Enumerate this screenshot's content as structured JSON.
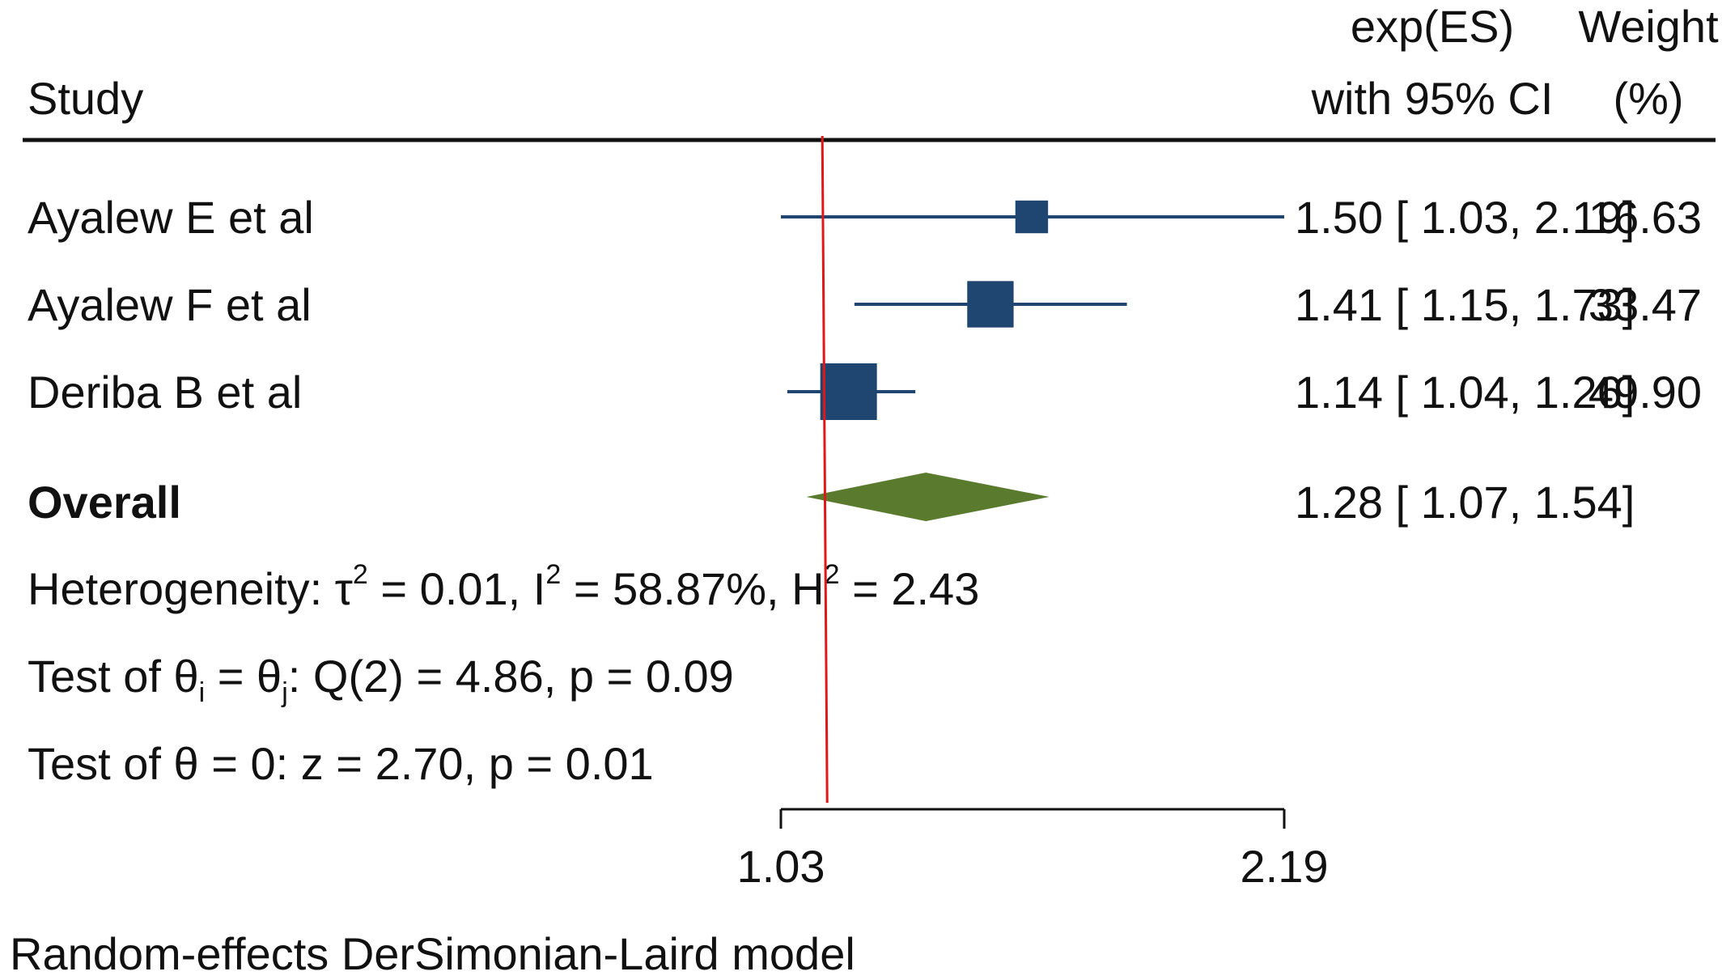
{
  "header": {
    "study": "Study",
    "es_line1": "exp(ES)",
    "es_line2": "with 95% CI",
    "weight_line1": "Weight",
    "weight_line2": "(%)"
  },
  "footer": "Random-effects DerSimonian-Laird model",
  "colors": {
    "study_marker": "#1f4670",
    "overall_diamond": "#5a7a2e",
    "reference_line": "#e01818"
  },
  "chart_data": {
    "type": "forest",
    "x_scale": "log",
    "xlim": [
      1.03,
      2.19
    ],
    "x_ticks": [
      1.03,
      2.19
    ],
    "x_tick_labels": [
      "1.03",
      "2.19"
    ],
    "reference_value": 1.1,
    "studies": [
      {
        "name": "Ayalew E et al",
        "es": 1.5,
        "lo": 1.03,
        "hi": 2.19,
        "weight": 16.63,
        "es_text": "1.50",
        "lo_text": "1.03",
        "hi_text": "2.19",
        "weight_text": "16.63"
      },
      {
        "name": "Ayalew F et al",
        "es": 1.41,
        "lo": 1.15,
        "hi": 1.73,
        "weight": 33.47,
        "es_text": "1.41",
        "lo_text": "1.15",
        "hi_text": "1.73",
        "weight_text": "33.47"
      },
      {
        "name": "Deriba B et al",
        "es": 1.14,
        "lo": 1.04,
        "hi": 1.26,
        "weight": 49.9,
        "es_text": "1.14",
        "lo_text": "1.04",
        "hi_text": "1.26",
        "weight_text": "49.90"
      }
    ],
    "overall": {
      "name": "Overall",
      "es": 1.28,
      "lo": 1.07,
      "hi": 1.54,
      "es_text": "1.28",
      "lo_text": "1.07",
      "hi_text": "1.54"
    },
    "heterogeneity": {
      "prefix": "Heterogeneity: ",
      "tau2": "0.01",
      "i2": "58.87%",
      "h2": "2.43"
    },
    "test_homogeneity": {
      "q_df": "2",
      "q": "4.86",
      "p": "0.09"
    },
    "test_overall": {
      "z": "2.70",
      "p": "0.01"
    }
  }
}
